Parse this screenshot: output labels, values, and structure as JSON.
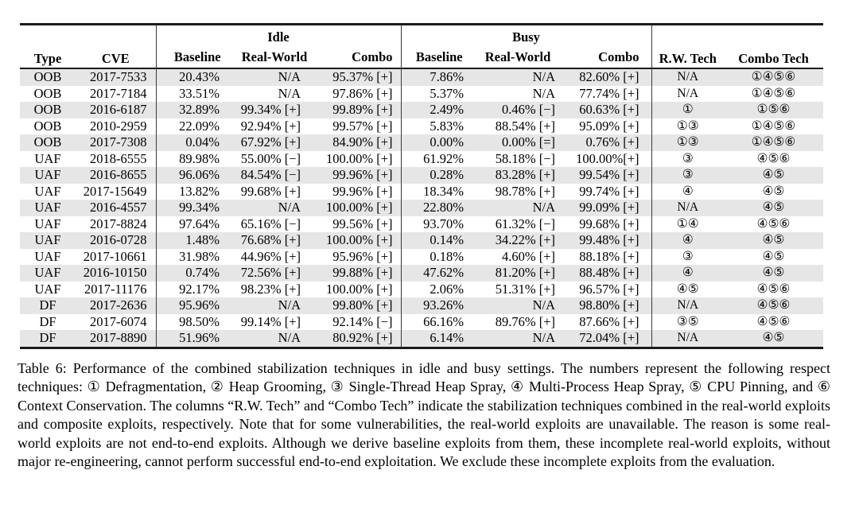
{
  "table": {
    "header": {
      "type": "Type",
      "cve": "CVE",
      "idle_group": "Idle",
      "busy_group": "Busy",
      "baseline": "Baseline",
      "real_world": "Real-World",
      "combo": "Combo",
      "rw_tech": "R.W. Tech",
      "combo_tech": "Combo Tech"
    },
    "rows": [
      {
        "type": "OOB",
        "cve": "2017-7533",
        "idle_baseline": "20.43%",
        "idle_rw": "N/A",
        "idle_combo": "95.37% [+]",
        "busy_baseline": "7.86%",
        "busy_rw": "N/A",
        "busy_combo": "82.60% [+]",
        "rw_tech": "N/A",
        "combo_tech": "①④⑤⑥"
      },
      {
        "type": "OOB",
        "cve": "2017-7184",
        "idle_baseline": "33.51%",
        "idle_rw": "N/A",
        "idle_combo": "97.86% [+]",
        "busy_baseline": "5.37%",
        "busy_rw": "N/A",
        "busy_combo": "77.74% [+]",
        "rw_tech": "N/A",
        "combo_tech": "①④⑤⑥"
      },
      {
        "type": "OOB",
        "cve": "2016-6187",
        "idle_baseline": "32.89%",
        "idle_rw": "99.34% [+]",
        "idle_combo": "99.89% [+]",
        "busy_baseline": "2.49%",
        "busy_rw": "0.46% [−]",
        "busy_combo": "60.63% [+]",
        "rw_tech": "①",
        "combo_tech": "①⑤⑥"
      },
      {
        "type": "OOB",
        "cve": "2010-2959",
        "idle_baseline": "22.09%",
        "idle_rw": "92.94% [+]",
        "idle_combo": "99.57% [+]",
        "busy_baseline": "5.83%",
        "busy_rw": "88.54% [+]",
        "busy_combo": "95.09% [+]",
        "rw_tech": "①③",
        "combo_tech": "①④⑤⑥"
      },
      {
        "type": "OOB",
        "cve": "2017-7308",
        "idle_baseline": "0.04%",
        "idle_rw": "67.92% [+]",
        "idle_combo": "84.90% [+]",
        "busy_baseline": "0.00%",
        "busy_rw": "0.00% [=]",
        "busy_combo": "0.76% [+]",
        "rw_tech": "①③",
        "combo_tech": "①④⑤⑥"
      },
      {
        "type": "UAF",
        "cve": "2018-6555",
        "idle_baseline": "89.98%",
        "idle_rw": "55.00% [−]",
        "idle_combo": "100.00% [+]",
        "busy_baseline": "61.92%",
        "busy_rw": "58.18% [−]",
        "busy_combo": "100.00%[+]",
        "rw_tech": "③",
        "combo_tech": "④⑤⑥"
      },
      {
        "type": "UAF",
        "cve": "2016-8655",
        "idle_baseline": "96.06%",
        "idle_rw": "84.54% [−]",
        "idle_combo": "99.96% [+]",
        "busy_baseline": "0.28%",
        "busy_rw": "83.28% [+]",
        "busy_combo": "99.54% [+]",
        "rw_tech": "③",
        "combo_tech": "④⑤"
      },
      {
        "type": "UAF",
        "cve": "2017-15649",
        "idle_baseline": "13.82%",
        "idle_rw": "99.68% [+]",
        "idle_combo": "99.96% [+]",
        "busy_baseline": "18.34%",
        "busy_rw": "98.78% [+]",
        "busy_combo": "99.74% [+]",
        "rw_tech": "④",
        "combo_tech": "④⑤"
      },
      {
        "type": "UAF",
        "cve": "2016-4557",
        "idle_baseline": "99.34%",
        "idle_rw": "N/A",
        "idle_combo": "100.00% [+]",
        "busy_baseline": "22.80%",
        "busy_rw": "N/A",
        "busy_combo": "99.09% [+]",
        "rw_tech": "N/A",
        "combo_tech": "④⑤"
      },
      {
        "type": "UAF",
        "cve": "2017-8824",
        "idle_baseline": "97.64%",
        "idle_rw": "65.16% [−]",
        "idle_combo": "99.56% [+]",
        "busy_baseline": "93.70%",
        "busy_rw": "61.32% [−]",
        "busy_combo": "99.68% [+]",
        "rw_tech": "①④",
        "combo_tech": "④⑤⑥"
      },
      {
        "type": "UAF",
        "cve": "2016-0728",
        "idle_baseline": "1.48%",
        "idle_rw": "76.68% [+]",
        "idle_combo": "100.00% [+]",
        "busy_baseline": "0.14%",
        "busy_rw": "34.22% [+]",
        "busy_combo": "99.48% [+]",
        "rw_tech": "④",
        "combo_tech": "④⑤"
      },
      {
        "type": "UAF",
        "cve": "2017-10661",
        "idle_baseline": "31.98%",
        "idle_rw": "44.96% [+]",
        "idle_combo": "95.96% [+]",
        "busy_baseline": "0.18%",
        "busy_rw": "4.60% [+]",
        "busy_combo": "88.18% [+]",
        "rw_tech": "③",
        "combo_tech": "④⑤"
      },
      {
        "type": "UAF",
        "cve": "2016-10150",
        "idle_baseline": "0.74%",
        "idle_rw": "72.56% [+]",
        "idle_combo": "99.88% [+]",
        "busy_baseline": "47.62%",
        "busy_rw": "81.20% [+]",
        "busy_combo": "88.48% [+]",
        "rw_tech": "④",
        "combo_tech": "④⑤"
      },
      {
        "type": "UAF",
        "cve": "2017-11176",
        "idle_baseline": "92.17%",
        "idle_rw": "98.23% [+]",
        "idle_combo": "100.00% [+]",
        "busy_baseline": "2.06%",
        "busy_rw": "51.31% [+]",
        "busy_combo": "96.57% [+]",
        "rw_tech": "④⑤",
        "combo_tech": "④⑤⑥"
      },
      {
        "type": "DF",
        "cve": "2017-2636",
        "idle_baseline": "95.96%",
        "idle_rw": "N/A",
        "idle_combo": "99.80% [+]",
        "busy_baseline": "93.26%",
        "busy_rw": "N/A",
        "busy_combo": "98.80% [+]",
        "rw_tech": "N/A",
        "combo_tech": "④⑤⑥"
      },
      {
        "type": "DF",
        "cve": "2017-6074",
        "idle_baseline": "98.50%",
        "idle_rw": "99.14% [+]",
        "idle_combo": "92.14% [−]",
        "busy_baseline": "66.16%",
        "busy_rw": "89.76% [+]",
        "busy_combo": "87.66% [+]",
        "rw_tech": "③⑤",
        "combo_tech": "④⑤⑥"
      },
      {
        "type": "DF",
        "cve": "2017-8890",
        "idle_baseline": "51.96%",
        "idle_rw": "N/A",
        "idle_combo": "80.92% [+]",
        "busy_baseline": "6.14%",
        "busy_rw": "N/A",
        "busy_combo": "72.04% [+]",
        "rw_tech": "N/A",
        "combo_tech": "④⑤"
      }
    ]
  },
  "caption": "Table 6: Performance of the combined stabilization techniques in idle and busy settings. The numbers represent the following respect techniques: ① Defragmentation, ② Heap Grooming, ③ Single-Thread Heap Spray, ④ Multi-Process Heap Spray, ⑤ CPU Pinning, and ⑥ Context Conservation. The columns “R.W. Tech” and “Combo Tech” indicate the stabilization techniques combined in the real-world exploits and composite exploits, respectively. Note that for some vulnerabilities, the real-world exploits are unavailable. The reason is some real-world exploits are not end-to-end exploits. Although we derive baseline exploits from them, these incomplete real-world exploits, without major re-engineering, cannot perform successful end-to-end exploitation. We exclude these incomplete exploits from the evaluation."
}
